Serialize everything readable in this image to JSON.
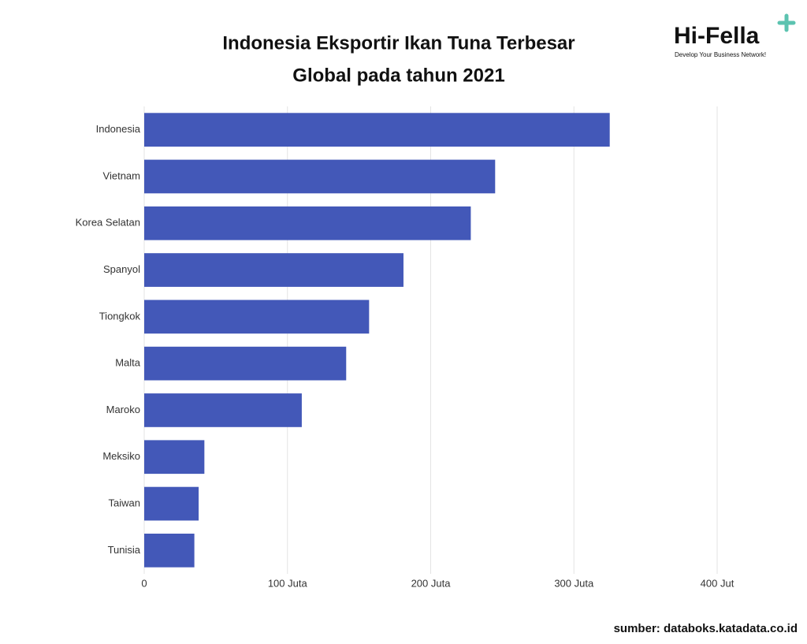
{
  "chart_data": {
    "type": "bar",
    "orientation": "horizontal",
    "title": [
      "Indonesia Eksportir Ikan Tuna Terbesar",
      "Global pada tahun 2021"
    ],
    "categories": [
      "Indonesia",
      "Vietnam",
      "Korea Selatan",
      "Spanyol",
      "Tiongkok",
      "Malta",
      "Maroko",
      "Meksiko",
      "Taiwan",
      "Tunisia"
    ],
    "values": [
      325,
      245,
      228,
      181,
      157,
      141,
      110,
      42,
      38,
      35
    ],
    "color": "#4358b8",
    "xlim": [
      0,
      400
    ],
    "xticks": [
      0,
      {
        "value": 100,
        "label": "100 Juta"
      },
      {
        "value": 200,
        "label": "200 Juta"
      },
      {
        "value": 300,
        "label": "300 Juta"
      },
      {
        "value": 400,
        "label": "400 Jut"
      }
    ],
    "grid": true,
    "source": "sumber: databoks.katadata.co.id",
    "logo": {
      "name": "Hi-Fella",
      "tagline": "Develop Your Business Network!"
    }
  }
}
